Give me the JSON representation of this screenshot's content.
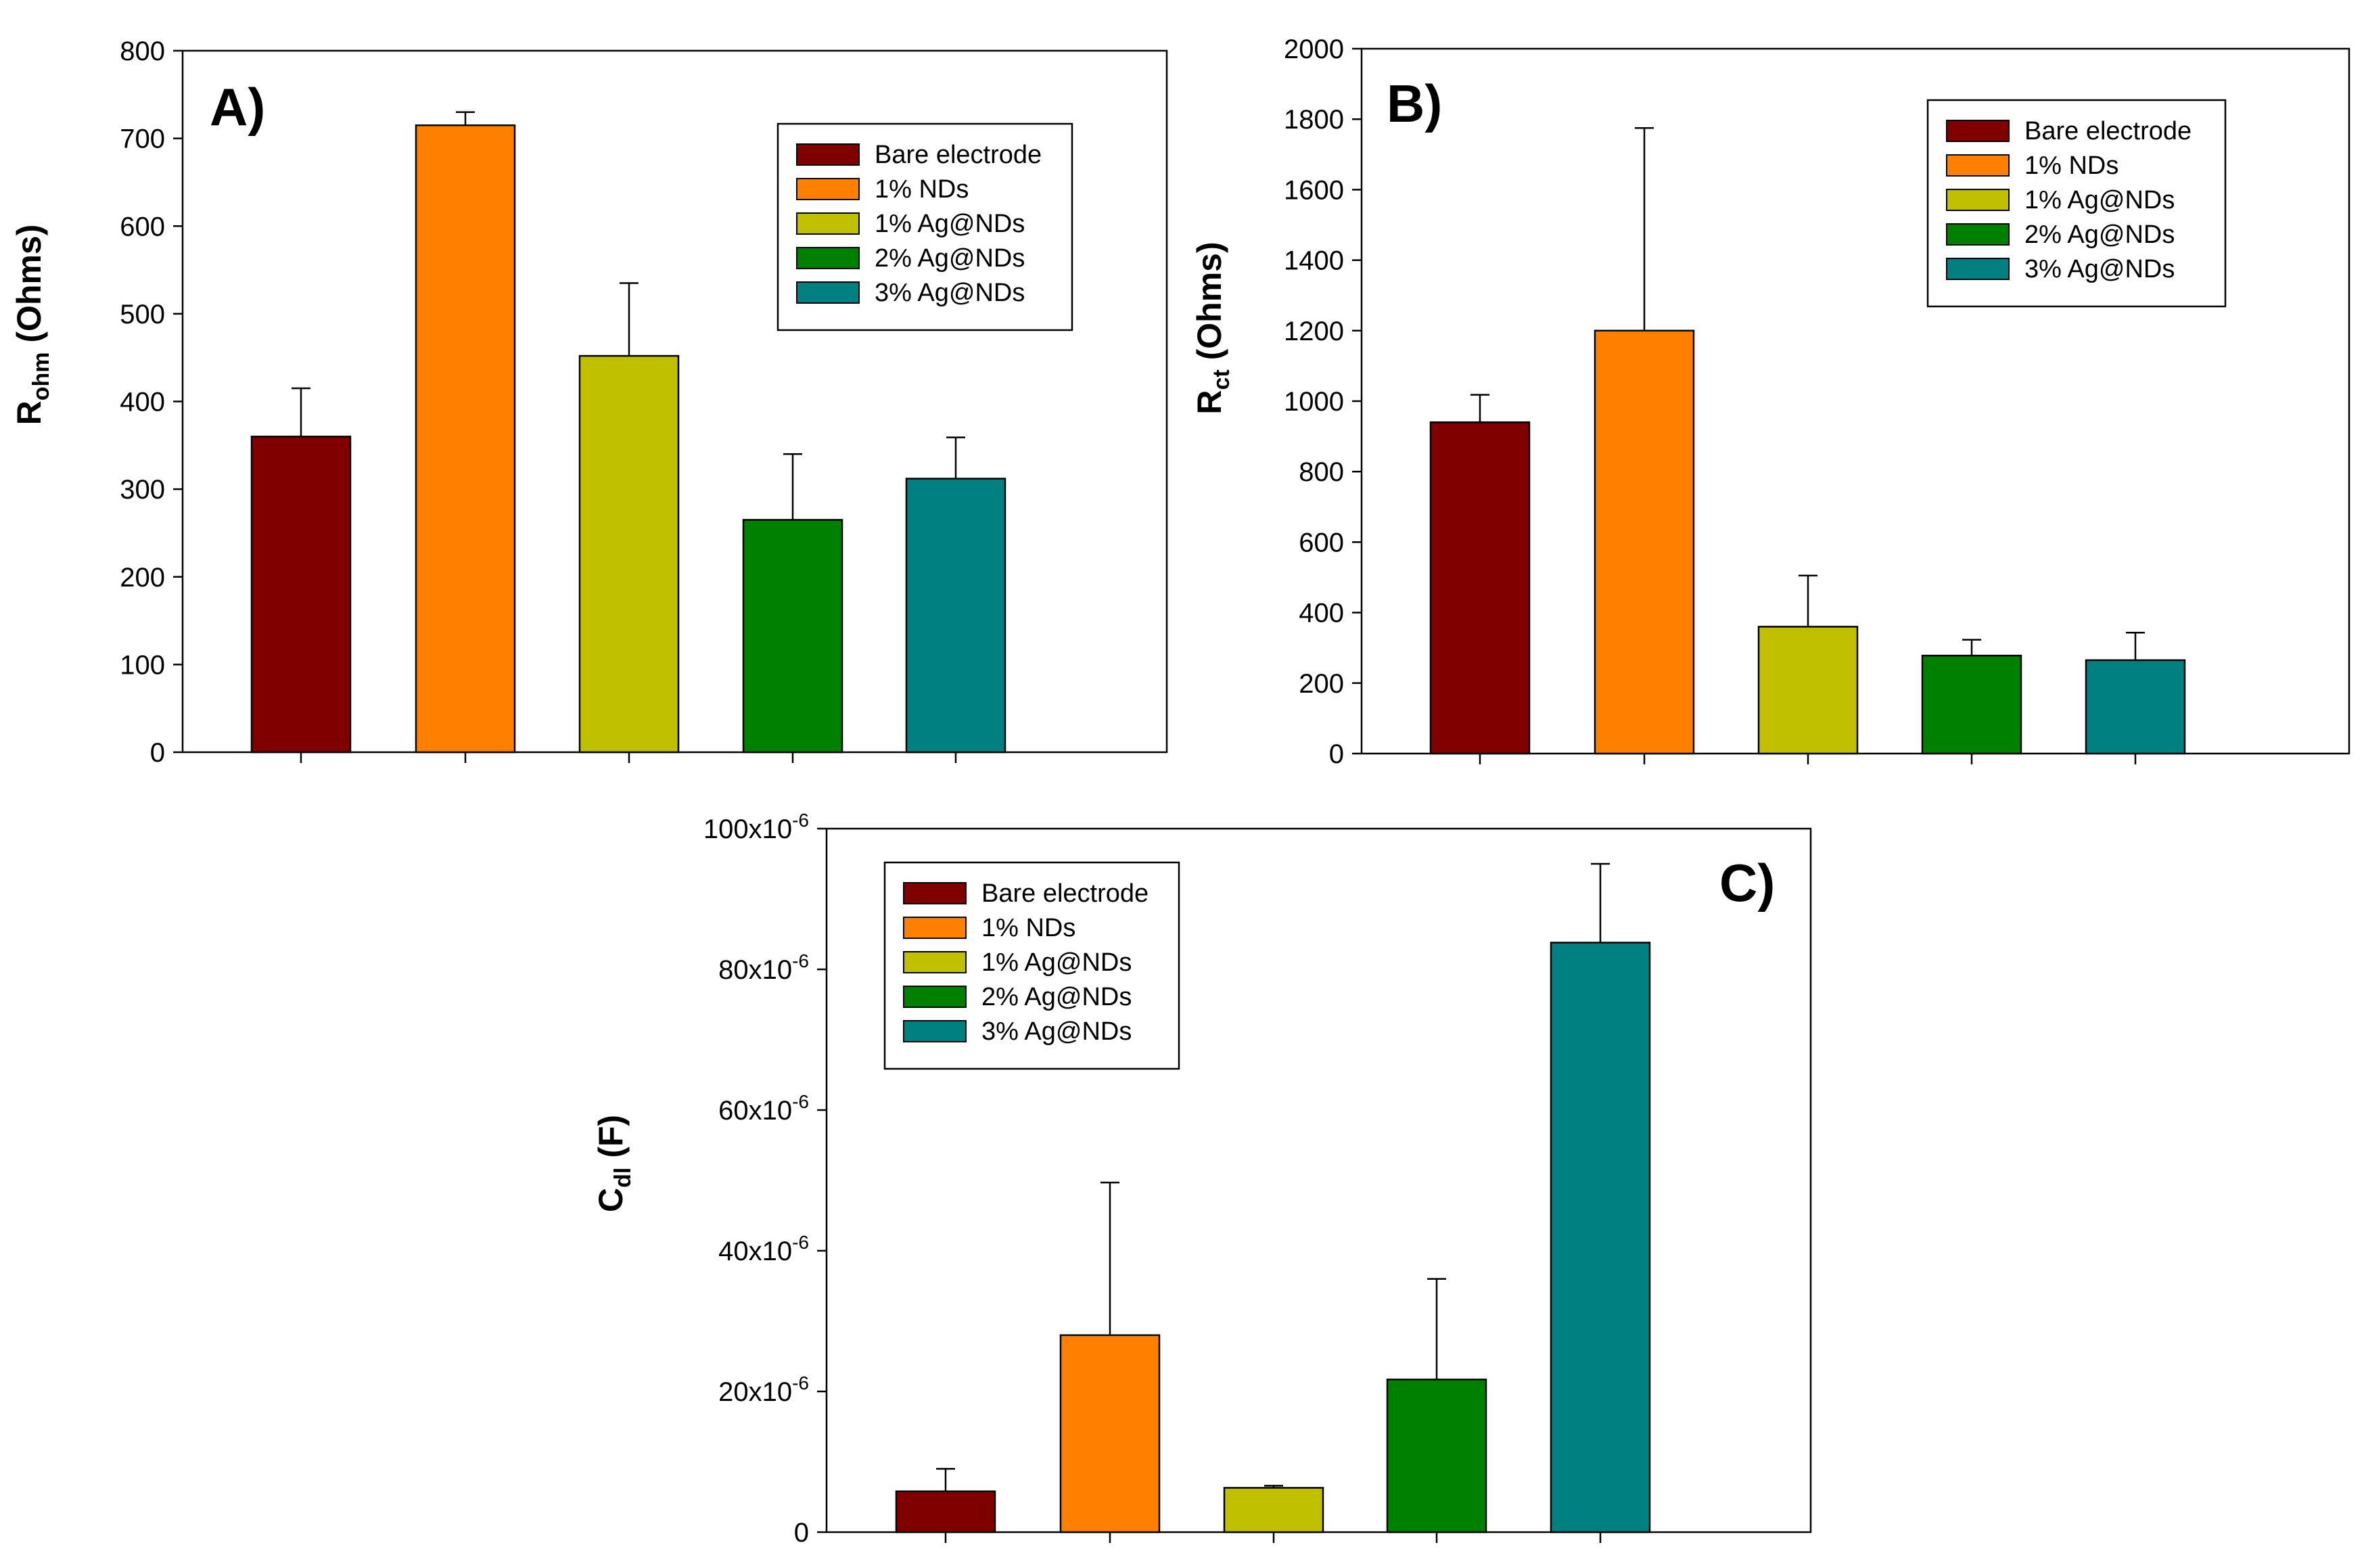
{
  "chart_data": [
    {
      "type": "bar",
      "panel_label": "A)",
      "ylabel_main": "R",
      "ylabel_sub": "ohm",
      "ylabel_unit": " (Ohms)",
      "ylim": [
        0,
        800
      ],
      "yticks": [
        0,
        100,
        200,
        300,
        400,
        500,
        600,
        700,
        800
      ],
      "ytick_labels": [
        "0",
        "100",
        "200",
        "300",
        "400",
        "500",
        "600",
        "700",
        "800"
      ],
      "categories": [
        "Bare electrode",
        "1% NDs",
        "1% Ag@NDs",
        "2% Ag@NDs",
        "3% Ag@NDs"
      ],
      "values": [
        360,
        715,
        452,
        265,
        312
      ],
      "errors": [
        55,
        15,
        83,
        75,
        47
      ],
      "legend": [
        "Bare electrode",
        "1% NDs",
        "1% Ag@NDs",
        "2% Ag@NDs",
        "3% Ag@NDs"
      ],
      "legend_position": "top-right",
      "grid": false
    },
    {
      "type": "bar",
      "panel_label": "B)",
      "ylabel_main": "R",
      "ylabel_sub": "ct",
      "ylabel_unit": " (Ohms)",
      "ylim": [
        0,
        2000
      ],
      "yticks": [
        0,
        200,
        400,
        600,
        800,
        1000,
        1200,
        1400,
        1600,
        1800,
        2000
      ],
      "ytick_labels": [
        "0",
        "200",
        "400",
        "600",
        "800",
        "1000",
        "1200",
        "1400",
        "1600",
        "1800",
        "2000"
      ],
      "categories": [
        "Bare electrode",
        "1% NDs",
        "1% Ag@NDs",
        "2% Ag@NDs",
        "3% Ag@NDs"
      ],
      "values": [
        940,
        1200,
        360,
        278,
        265
      ],
      "errors": [
        78,
        575,
        145,
        45,
        78
      ],
      "legend": [
        "Bare electrode",
        "1% NDs",
        "1% Ag@NDs",
        "2% Ag@NDs",
        "3% Ag@NDs"
      ],
      "legend_position": "top-right",
      "grid": false
    },
    {
      "type": "bar",
      "panel_label": "C)",
      "ylabel_main": "C",
      "ylabel_sub": "dl",
      "ylabel_unit": " (F)",
      "ylim": [
        0,
        0.0001
      ],
      "yticks": [
        0,
        2e-05,
        4e-05,
        6e-05,
        8e-05,
        0.0001
      ],
      "ytick_labels": [
        {
          "base": "0",
          "exp": ""
        },
        {
          "base": "20x10",
          "exp": "-6"
        },
        {
          "base": "40x10",
          "exp": "-6"
        },
        {
          "base": "60x10",
          "exp": "-6"
        },
        {
          "base": "80x10",
          "exp": "-6"
        },
        {
          "base": "100x10",
          "exp": "-6"
        }
      ],
      "categories": [
        "Bare electrode",
        "1% NDs",
        "1% Ag@NDs",
        "2% Ag@NDs",
        "3% Ag@NDs"
      ],
      "values": [
        5.8e-06,
        2.8e-05,
        6.3e-06,
        2.17e-05,
        8.38e-05
      ],
      "errors": [
        3.2e-06,
        2.17e-05,
        3e-07,
        1.43e-05,
        1.12e-05
      ],
      "legend": [
        "Bare electrode",
        "1% NDs",
        "1% Ag@NDs",
        "2% Ag@NDs",
        "3% Ag@NDs"
      ],
      "legend_position": "top-left",
      "grid": false
    }
  ],
  "colors": [
    "#800000",
    "#ff8000",
    "#c0c000",
    "#008000",
    "#008080"
  ]
}
